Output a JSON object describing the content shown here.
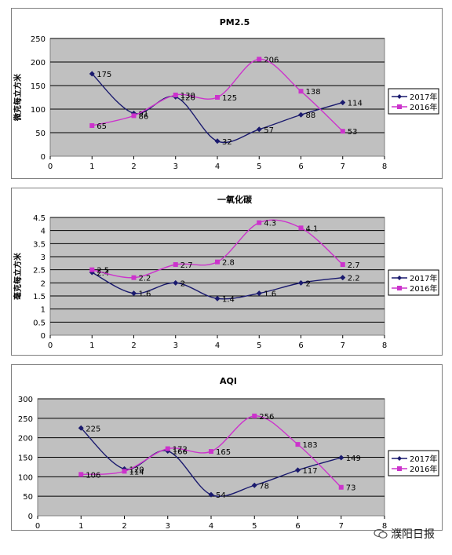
{
  "colors": {
    "plot_bg": "#c0c0c0",
    "grid": "#000000",
    "series_2017": "#1a1a6e",
    "series_2016": "#cc33cc"
  },
  "chart_data": [
    {
      "type": "line",
      "title": "PM2.5",
      "ylabel": "微克每立方米",
      "xlabel": "",
      "xlim": [
        0,
        8
      ],
      "ylim": [
        0,
        250
      ],
      "xticks": [
        0,
        1,
        2,
        3,
        4,
        5,
        6,
        7,
        8
      ],
      "yticks": [
        0,
        50,
        100,
        150,
        200,
        250
      ],
      "grid": true,
      "legend": "right",
      "series": [
        {
          "name": "2017年",
          "x": [
            1,
            2,
            3,
            4,
            5,
            6,
            7
          ],
          "values": [
            175,
            91,
            126,
            32,
            57,
            88,
            114
          ],
          "marker": "diamond"
        },
        {
          "name": "2016年",
          "x": [
            1,
            2,
            3,
            4,
            5,
            6,
            7
          ],
          "values": [
            65,
            86,
            130,
            125,
            206,
            138,
            53
          ],
          "marker": "square"
        }
      ]
    },
    {
      "type": "line",
      "title": "一氧化碳",
      "ylabel": "毫克每立方米",
      "xlabel": "",
      "xlim": [
        0,
        8
      ],
      "ylim": [
        0,
        4.5
      ],
      "xticks": [
        0,
        1,
        2,
        3,
        4,
        5,
        6,
        7,
        8
      ],
      "yticks": [
        0,
        0.5,
        1,
        1.5,
        2,
        2.5,
        3,
        3.5,
        4,
        4.5
      ],
      "grid": true,
      "legend": "right",
      "series": [
        {
          "name": "2017年",
          "x": [
            1,
            2,
            3,
            4,
            5,
            6,
            7
          ],
          "values": [
            2.4,
            1.6,
            2,
            1.4,
            1.6,
            2,
            2.2
          ],
          "marker": "diamond"
        },
        {
          "name": "2016年",
          "x": [
            1,
            2,
            3,
            4,
            5,
            6,
            7
          ],
          "values": [
            2.5,
            2.2,
            2.7,
            2.8,
            4.3,
            4.1,
            2.7
          ],
          "marker": "square"
        }
      ]
    },
    {
      "type": "line",
      "title": "AQI",
      "ylabel": "",
      "xlabel": "",
      "xlim": [
        0,
        8
      ],
      "ylim": [
        0,
        300
      ],
      "xticks": [
        0,
        1,
        2,
        3,
        4,
        5,
        6,
        7,
        8
      ],
      "yticks": [
        0,
        50,
        100,
        150,
        200,
        250,
        300
      ],
      "grid": true,
      "legend": "right",
      "series": [
        {
          "name": "2017年",
          "x": [
            1,
            2,
            3,
            4,
            5,
            6,
            7
          ],
          "values": [
            225,
            120,
            166,
            54,
            78,
            117,
            149
          ],
          "marker": "diamond"
        },
        {
          "name": "2016年",
          "x": [
            1,
            2,
            3,
            4,
            5,
            6,
            7
          ],
          "values": [
            106,
            114,
            172,
            165,
            256,
            183,
            73
          ],
          "marker": "square"
        }
      ]
    }
  ],
  "watermark": {
    "text": "濮阳日报"
  }
}
